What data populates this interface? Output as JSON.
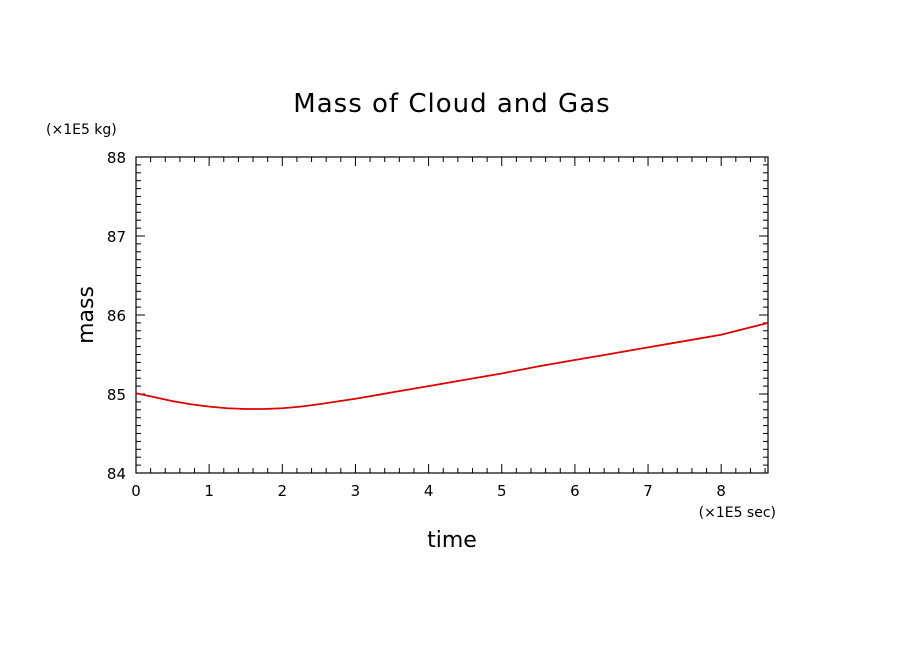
{
  "chart_data": {
    "type": "line",
    "title": "Mass of Cloud and Gas",
    "xlabel": "time",
    "ylabel": "mass",
    "x_unit": "(×1E5 sec)",
    "y_unit": "(×1E5 kg)",
    "xlim": [
      0,
      8.64
    ],
    "ylim": [
      84,
      88
    ],
    "x_ticks": [
      0,
      1,
      2,
      3,
      4,
      5,
      6,
      7,
      8
    ],
    "y_ticks": [
      84,
      85,
      86,
      87,
      88
    ],
    "x_tick_labels": [
      "0",
      "1",
      "2",
      "3",
      "4",
      "5",
      "6",
      "7",
      "8"
    ],
    "y_tick_labels": [
      "84",
      "85",
      "86",
      "87",
      "88"
    ],
    "grid": false,
    "series": [
      {
        "color": "#e00000",
        "x": [
          0,
          0.25,
          0.5,
          0.75,
          1.0,
          1.25,
          1.5,
          1.75,
          2.0,
          2.25,
          2.5,
          3.0,
          3.5,
          4.0,
          4.5,
          5.0,
          5.5,
          6.0,
          6.5,
          7.0,
          7.5,
          8.0,
          8.64
        ],
        "y": [
          85.01,
          84.96,
          84.91,
          84.87,
          84.84,
          84.82,
          84.81,
          84.81,
          84.82,
          84.84,
          84.87,
          84.94,
          85.02,
          85.1,
          85.18,
          85.26,
          85.35,
          85.43,
          85.51,
          85.59,
          85.67,
          85.75,
          85.9
        ]
      }
    ]
  }
}
